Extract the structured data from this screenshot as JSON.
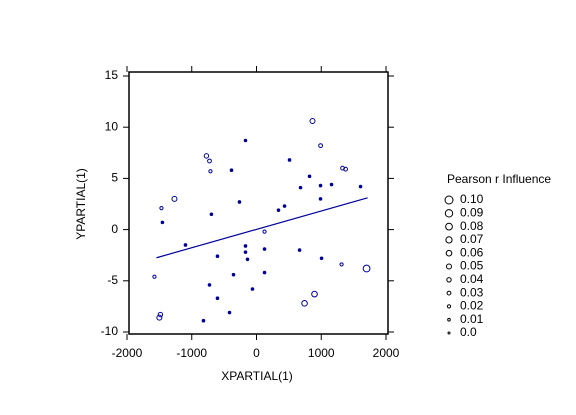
{
  "chart_data": {
    "type": "scatter",
    "xlabel": "XPARTIAL(1)",
    "ylabel": "YPARTIAL(1)",
    "color": "#000099",
    "xlim": [
      -2000,
      2000
    ],
    "ylim": [
      -10,
      15
    ],
    "xticks": [
      -2000,
      -1000,
      0,
      1000,
      2000
    ],
    "yticks": [
      -10,
      -5,
      0,
      5,
      10,
      15
    ],
    "x": [
      -170,
      865,
      990,
      -773,
      -726,
      -711,
      -386,
      -1267,
      -1468,
      -1453,
      -696,
      -263,
      510,
      819,
      680,
      989,
      1159,
      1329,
      1376,
      1607,
      340,
      433,
      989,
      -1097,
      -603,
      -170,
      -170,
      -139,
      124,
      124,
      665,
      1005,
      1314,
      1700,
      -1576,
      -355,
      124,
      -726,
      -603,
      -62,
      896,
      742,
      -417,
      -1484,
      -1500,
      -819
    ],
    "y": [
      8.7,
      10.6,
      8.2,
      7.2,
      6.7,
      5.7,
      5.8,
      3.0,
      2.1,
      0.7,
      1.5,
      2.7,
      6.8,
      5.2,
      4.1,
      4.3,
      4.4,
      6.0,
      5.9,
      4.2,
      1.9,
      2.3,
      3.0,
      -1.5,
      -2.6,
      -1.6,
      -2.2,
      -2.9,
      -0.2,
      -1.9,
      -2.0,
      -2.8,
      -3.4,
      -3.8,
      -4.6,
      -4.4,
      -4.2,
      -5.4,
      -6.7,
      -5.8,
      -6.3,
      -7.2,
      -8.1,
      -8.3,
      -8.6,
      -8.9
    ],
    "size": [
      0.01,
      0.05,
      0.03,
      0.04,
      0.03,
      0.02,
      0.01,
      0.05,
      0.02,
      0.01,
      0.01,
      0.01,
      0.01,
      0.01,
      0.01,
      0.01,
      0.01,
      0.03,
      0.03,
      0.01,
      0.01,
      0.01,
      0.01,
      0.01,
      0.01,
      0.01,
      0.01,
      0.01,
      0.02,
      0.01,
      0.01,
      0.01,
      0.02,
      0.08,
      0.02,
      0.01,
      0.01,
      0.01,
      0.01,
      0.01,
      0.06,
      0.06,
      0.01,
      0.04,
      0.05,
      0.01
    ],
    "fit_line": {
      "x": [
        -1545,
        1716
      ],
      "y": [
        -2.75,
        3.1
      ]
    },
    "size_legend": {
      "title": "Pearson r Influence",
      "values": [
        {
          "value": 0.1,
          "label": "0.10"
        },
        0.09,
        0.08,
        0.07,
        0.06,
        0.05,
        0.04,
        0.03,
        0.02,
        0.01,
        {
          "value": 0,
          "label": "0.0"
        }
      ]
    }
  }
}
